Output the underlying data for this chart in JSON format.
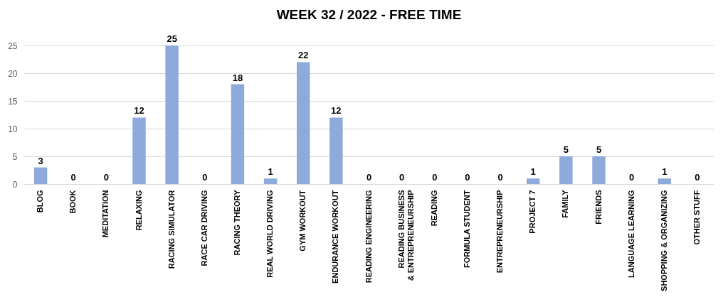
{
  "chart_data": {
    "type": "bar",
    "title": "WEEK 32 / 2022 - FREE TIME",
    "categories": [
      "BLOG",
      "BOOK",
      "MEDITATION",
      "RELAXING",
      "RACING SIMULATOR",
      "RACE CAR DRIVING",
      "RACING THEORY",
      "REAL WORLD DRIVING",
      "GYM WORKOUT",
      "ENDURANCE WORKOUT",
      "READING ENGINEERING",
      "READING BUSINESS & ENTREPRENEURSHIP",
      "READING",
      "FORMULA STUDENT",
      "ENTREPRENEURSHIP",
      "PROJECT 7",
      "FAMILY",
      "FRIENDS",
      "LANGUAGE LEARNING",
      "SHOPPING & ORGANIZING",
      "OTHER STUFF"
    ],
    "values": [
      3,
      0,
      0,
      12,
      25,
      0,
      18,
      1,
      22,
      12,
      0,
      0,
      0,
      0,
      0,
      1,
      5,
      5,
      0,
      1,
      0
    ],
    "color": "#8eaadb",
    "ylim": [
      0,
      25
    ],
    "yticks": [
      0,
      5,
      10,
      15,
      20,
      25
    ],
    "grid": "y",
    "data_labels": true
  }
}
